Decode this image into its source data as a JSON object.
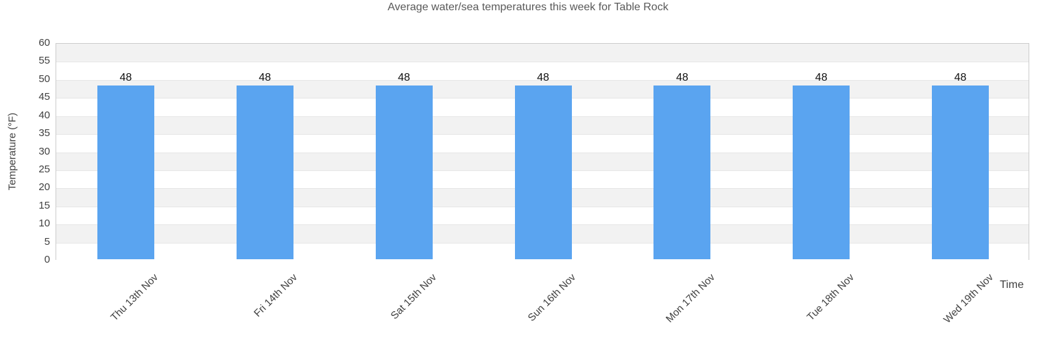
{
  "chart_data": {
    "type": "bar",
    "title": "Average water/sea temperatures this week for Table Rock",
    "xlabel": "Time",
    "ylabel": "Temperature (°F)",
    "categories": [
      "Thu 13th Nov",
      "Fri 14th Nov",
      "Sat 15th Nov",
      "Sun 16th Nov",
      "Mon 17th Nov",
      "Tue 18th Nov",
      "Wed 19th Nov"
    ],
    "values": [
      48,
      48,
      48,
      48,
      48,
      48,
      48
    ],
    "data_labels": [
      "48",
      "48",
      "48",
      "48",
      "48",
      "48",
      "48"
    ],
    "ylim": [
      0,
      60
    ],
    "ytick_step": 5,
    "yticks": [
      0,
      5,
      10,
      15,
      20,
      25,
      30,
      35,
      40,
      45,
      50,
      55,
      60
    ],
    "legend": "none",
    "grid": "horizontal-bands",
    "colors": {
      "bar": "#5AA4F0",
      "band_dark": "#f2f2f2",
      "band_light": "#ffffff",
      "gridline": "#e6e6e6",
      "plot_border": "#cccccc",
      "title_text": "#595959",
      "axis_text": "#404040",
      "value_text": "#111111"
    }
  }
}
